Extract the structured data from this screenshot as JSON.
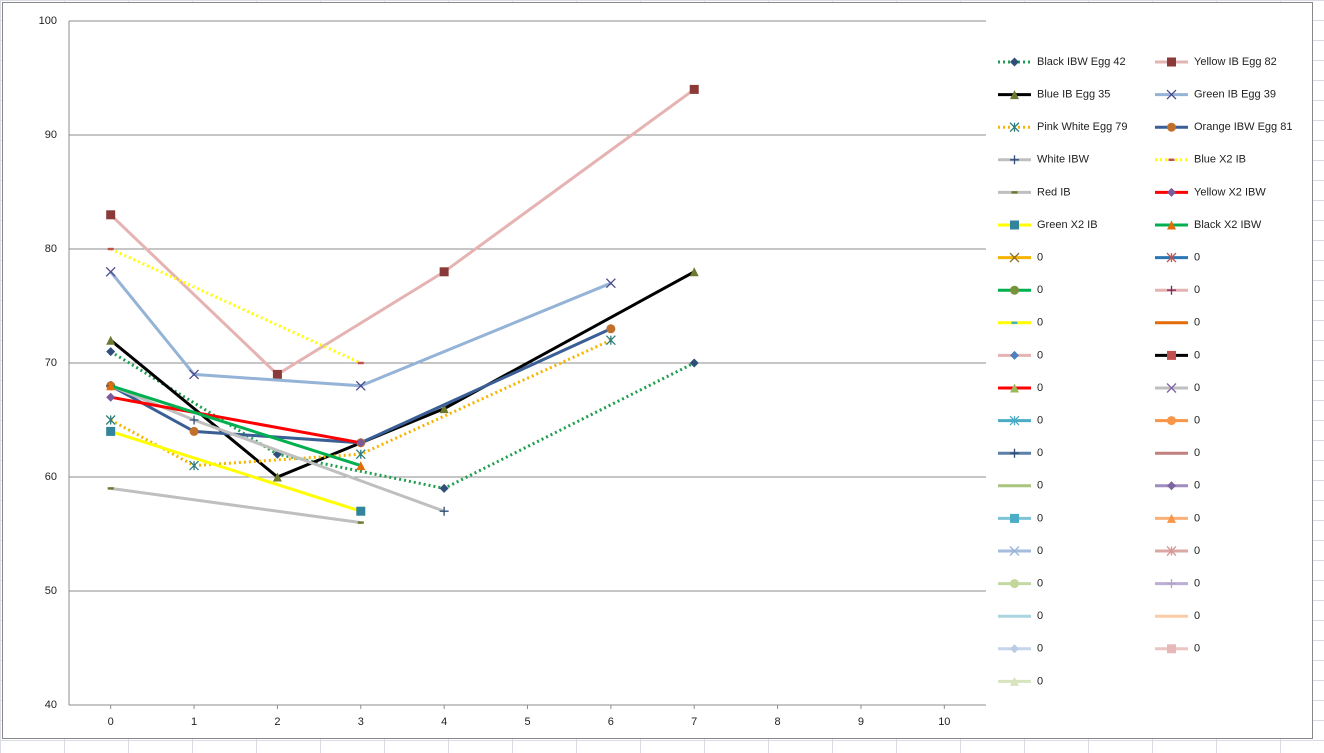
{
  "chart_data": {
    "type": "line",
    "xlim": [
      -0.5,
      10.5
    ],
    "xticks": [
      0,
      1,
      2,
      3,
      4,
      5,
      6,
      7,
      8,
      9,
      10
    ],
    "ylim": [
      40,
      100
    ],
    "yticks": [
      40,
      50,
      60,
      70,
      80,
      90,
      100
    ],
    "grid": true,
    "series": [
      {
        "name": "Black IBW Egg 42",
        "color": "#1e9e50",
        "dotted": true,
        "marker": "diamond",
        "marker_color": "#2f4f7a",
        "x": [
          0,
          2,
          4,
          7
        ],
        "values": [
          71,
          62,
          59,
          70
        ]
      },
      {
        "name": "Yellow IB Egg 82",
        "color": "#e6b3b3",
        "dotted": false,
        "marker": "square",
        "marker_color": "#8b3a3a",
        "x": [
          0,
          2,
          4,
          7
        ],
        "values": [
          83,
          69,
          78,
          94
        ]
      },
      {
        "name": "Blue IB Egg 35",
        "color": "#000000",
        "dotted": false,
        "marker": "triangle",
        "marker_color": "#6b7a2e",
        "x": [
          0,
          2,
          4,
          7
        ],
        "values": [
          72,
          60,
          66,
          78
        ]
      },
      {
        "name": "Green IB Egg 39",
        "color": "#95b3d7",
        "dotted": false,
        "marker": "x",
        "marker_color": "#4a4a8a",
        "x": [
          0,
          1,
          3,
          6
        ],
        "values": [
          78,
          69,
          68,
          77
        ]
      },
      {
        "name": "Pink White Egg 79",
        "color": "#f5b400",
        "dotted": true,
        "marker": "star",
        "marker_color": "#2e7d7d",
        "x": [
          0,
          1,
          3,
          6
        ],
        "values": [
          65,
          61,
          62,
          72
        ]
      },
      {
        "name": "Orange IBW Egg 81",
        "color": "#3a5f95",
        "dotted": false,
        "marker": "circle",
        "marker_color": "#c0702a",
        "x": [
          0,
          1,
          3,
          6
        ],
        "values": [
          68,
          64,
          63,
          73
        ]
      },
      {
        "name": "White IBW",
        "color": "#bfbfbf",
        "dotted": false,
        "marker": "plus",
        "marker_color": "#2f4f7a",
        "x": [
          0,
          1,
          4
        ],
        "values": [
          68,
          65,
          57
        ]
      },
      {
        "name": "Blue X2 IB",
        "color": "#ffff00",
        "dotted": true,
        "marker": "dash",
        "marker_color": "#c0504d",
        "x": [
          0,
          3
        ],
        "values": [
          80,
          70
        ]
      },
      {
        "name": "Red IB",
        "color": "#bfbfbf",
        "dotted": false,
        "marker": "dash",
        "marker_color": "#6b7a2e",
        "x": [
          0,
          3
        ],
        "values": [
          59,
          56
        ]
      },
      {
        "name": "Yellow X2 IBW",
        "color": "#ff0000",
        "dotted": false,
        "marker": "diamond",
        "marker_color": "#7a5a9a",
        "x": [
          0,
          3
        ],
        "values": [
          67,
          63
        ]
      },
      {
        "name": "Green X2 IB",
        "color": "#ffff00",
        "dotted": false,
        "marker": "square",
        "marker_color": "#31849b",
        "x": [
          0,
          3
        ],
        "values": [
          64,
          57
        ]
      },
      {
        "name": "Black X2 IBW",
        "color": "#00b050",
        "dotted": false,
        "marker": "triangle",
        "marker_color": "#e36c09",
        "x": [
          0,
          3
        ],
        "values": [
          68,
          61
        ]
      },
      {
        "name": "0",
        "color": "#f5b400",
        "dotted": false,
        "marker": "x",
        "marker_color": "#8a6a2a",
        "x": [],
        "values": []
      },
      {
        "name": "0",
        "color": "#2e75b6",
        "dotted": false,
        "marker": "star",
        "marker_color": "#c0504d",
        "x": [],
        "values": []
      },
      {
        "name": "0",
        "color": "#00b050",
        "dotted": false,
        "marker": "circle",
        "marker_color": "#77933c",
        "x": [],
        "values": []
      },
      {
        "name": "0",
        "color": "#e6b3b3",
        "dotted": false,
        "marker": "plus",
        "marker_color": "#7a2a5a",
        "x": [],
        "values": []
      },
      {
        "name": "0",
        "color": "#ffff00",
        "dotted": false,
        "marker": "dash",
        "marker_color": "#4bacc6",
        "x": [],
        "values": []
      },
      {
        "name": "0",
        "color": "#e36c09",
        "dotted": false,
        "marker": "dash",
        "marker_color": "#e36c09",
        "x": [],
        "values": []
      },
      {
        "name": "0",
        "color": "#e6b3b3",
        "dotted": false,
        "marker": "diamond",
        "marker_color": "#4f81bd",
        "x": [],
        "values": []
      },
      {
        "name": "0",
        "color": "#000000",
        "dotted": false,
        "marker": "square",
        "marker_color": "#c0504d",
        "x": [],
        "values": []
      },
      {
        "name": "0",
        "color": "#ff0000",
        "dotted": false,
        "marker": "triangle",
        "marker_color": "#9bbb59",
        "x": [],
        "values": []
      },
      {
        "name": "0",
        "color": "#bfbfbf",
        "dotted": false,
        "marker": "x",
        "marker_color": "#8064a2",
        "x": [],
        "values": []
      },
      {
        "name": "0",
        "color": "#4bacc6",
        "dotted": false,
        "marker": "star",
        "marker_color": "#4bacc6",
        "x": [],
        "values": []
      },
      {
        "name": "0",
        "color": "#f79646",
        "dotted": false,
        "marker": "circle",
        "marker_color": "#f79646",
        "x": [],
        "values": []
      },
      {
        "name": "0",
        "color": "#5b7fa8",
        "dotted": false,
        "marker": "plus",
        "marker_color": "#2c4d75",
        "x": [],
        "values": []
      },
      {
        "name": "0",
        "color": "#c0807d",
        "dotted": false,
        "marker": "dash",
        "marker_color": "#c0807d",
        "x": [],
        "values": []
      },
      {
        "name": "0",
        "color": "#a9c47f",
        "dotted": false,
        "marker": "dash",
        "marker_color": "#a9c47f",
        "x": [],
        "values": []
      },
      {
        "name": "0",
        "color": "#a08cc0",
        "dotted": false,
        "marker": "diamond",
        "marker_color": "#8064a2",
        "x": [],
        "values": []
      },
      {
        "name": "0",
        "color": "#7cc4d6",
        "dotted": false,
        "marker": "square",
        "marker_color": "#4bacc6",
        "x": [],
        "values": []
      },
      {
        "name": "0",
        "color": "#f9b07a",
        "dotted": false,
        "marker": "triangle",
        "marker_color": "#f79646",
        "x": [],
        "values": []
      },
      {
        "name": "0",
        "color": "#a6bcdc",
        "dotted": false,
        "marker": "x",
        "marker_color": "#95b3d7",
        "x": [],
        "values": []
      },
      {
        "name": "0",
        "color": "#dba8a6",
        "dotted": false,
        "marker": "star",
        "marker_color": "#d99694",
        "x": [],
        "values": []
      },
      {
        "name": "0",
        "color": "#c4d8a4",
        "dotted": false,
        "marker": "circle",
        "marker_color": "#c3d69b",
        "x": [],
        "values": []
      },
      {
        "name": "0",
        "color": "#bcaed4",
        "dotted": false,
        "marker": "plus",
        "marker_color": "#b2a2c7",
        "x": [],
        "values": []
      },
      {
        "name": "0",
        "color": "#a9d4e0",
        "dotted": false,
        "marker": "dash",
        "marker_color": "#a9d4e0",
        "x": [],
        "values": []
      },
      {
        "name": "0",
        "color": "#fbcba6",
        "dotted": false,
        "marker": "dash",
        "marker_color": "#fbcba6",
        "x": [],
        "values": []
      },
      {
        "name": "0",
        "color": "#c5d5ea",
        "dotted": false,
        "marker": "diamond",
        "marker_color": "#b9cde5",
        "x": [],
        "values": []
      },
      {
        "name": "0",
        "color": "#ebc5c4",
        "dotted": false,
        "marker": "square",
        "marker_color": "#e6b9b8",
        "x": [],
        "values": []
      },
      {
        "name": "0",
        "color": "#d7e4bd",
        "dotted": false,
        "marker": "triangle",
        "marker_color": "#d7e4bd",
        "x": [],
        "values": []
      }
    ]
  }
}
